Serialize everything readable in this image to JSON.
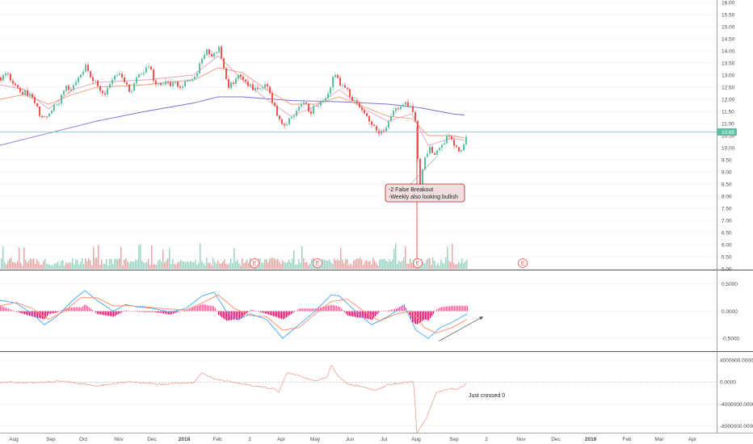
{
  "chart_data": {
    "type": "candlestick",
    "price_panel": {
      "y_ticks": [
        "16.00",
        "15.50",
        "15.00",
        "14.50",
        "14.00",
        "13.50",
        "13.00",
        "12.50",
        "12.00",
        "11.50",
        "11.00",
        "10.50",
        "10.00",
        "9.50",
        "9.00",
        "8.50",
        "8.00",
        "7.50",
        "7.00",
        "6.50",
        "6.00",
        "5.50",
        "5.00"
      ],
      "ylim": [
        5.0,
        16.0
      ],
      "last_price": "10.65",
      "grid": true,
      "price_path": [
        [
          0,
          12.9
        ],
        [
          8,
          13.1
        ],
        [
          16,
          12.6
        ],
        [
          24,
          12.4
        ],
        [
          32,
          12.2
        ],
        [
          40,
          12.0
        ],
        [
          48,
          11.4
        ],
        [
          56,
          11.3
        ],
        [
          64,
          11.7
        ],
        [
          72,
          11.9
        ],
        [
          80,
          12.6
        ],
        [
          88,
          12.4
        ],
        [
          96,
          12.8
        ],
        [
          104,
          13.4
        ],
        [
          112,
          12.8
        ],
        [
          120,
          12.6
        ],
        [
          128,
          12.2
        ],
        [
          136,
          12.6
        ],
        [
          144,
          13.1
        ],
        [
          152,
          12.7
        ],
        [
          160,
          12.3
        ],
        [
          168,
          12.9
        ],
        [
          176,
          13.1
        ],
        [
          184,
          13.3
        ],
        [
          192,
          12.6
        ],
        [
          200,
          12.7
        ],
        [
          208,
          12.6
        ],
        [
          216,
          12.6
        ],
        [
          224,
          12.5
        ],
        [
          232,
          12.8
        ],
        [
          240,
          12.9
        ],
        [
          248,
          13.6
        ],
        [
          256,
          14.0
        ],
        [
          264,
          13.8
        ],
        [
          270,
          14.2
        ],
        [
          276,
          13.3
        ],
        [
          282,
          12.5
        ],
        [
          288,
          12.7
        ],
        [
          296,
          13.1
        ],
        [
          304,
          12.7
        ],
        [
          312,
          12.4
        ],
        [
          320,
          12.3
        ],
        [
          328,
          12.6
        ],
        [
          336,
          11.9
        ],
        [
          344,
          11.2
        ],
        [
          352,
          10.9
        ],
        [
          360,
          11.3
        ],
        [
          368,
          11.6
        ],
        [
          376,
          11.8
        ],
        [
          384,
          11.5
        ],
        [
          392,
          11.8
        ],
        [
          400,
          11.9
        ],
        [
          408,
          12.4
        ],
        [
          412,
          13.2
        ],
        [
          420,
          12.6
        ],
        [
          428,
          12.4
        ],
        [
          436,
          12.0
        ],
        [
          444,
          11.6
        ],
        [
          452,
          11.3
        ],
        [
          460,
          11.0
        ],
        [
          468,
          10.6
        ],
        [
          476,
          10.7
        ],
        [
          484,
          11.4
        ],
        [
          492,
          11.6
        ],
        [
          500,
          11.9
        ],
        [
          508,
          11.6
        ],
        [
          514,
          10.9
        ],
        [
          518,
          8.2
        ],
        [
          524,
          9.6
        ],
        [
          530,
          10.0
        ],
        [
          536,
          9.6
        ],
        [
          542,
          10.1
        ],
        [
          548,
          10.2
        ],
        [
          554,
          10.5
        ],
        [
          560,
          10.2
        ],
        [
          566,
          9.8
        ],
        [
          572,
          10.1
        ],
        [
          578,
          10.65
        ]
      ],
      "series": [
        {
          "name": "",
          "color": "#7b6fd6",
          "points": [
            [
              0,
              10.1
            ],
            [
              60,
              10.6
            ],
            [
              120,
              11.1
            ],
            [
              180,
              11.5
            ],
            [
              240,
              11.85
            ],
            [
              270,
              12.1
            ],
            [
              300,
              12.1
            ],
            [
              360,
              11.95
            ],
            [
              420,
              11.9
            ],
            [
              480,
              11.8
            ],
            [
              520,
              11.65
            ],
            [
              560,
              11.4
            ],
            [
              575,
              11.35
            ]
          ]
        },
        {
          "name": "",
          "color": "#ef9a7a",
          "points": [
            [
              0,
              12.0
            ],
            [
              30,
              12.2
            ],
            [
              60,
              11.8
            ],
            [
              90,
              12.2
            ],
            [
              120,
              12.5
            ],
            [
              180,
              12.6
            ],
            [
              240,
              12.8
            ],
            [
              270,
              13.3
            ],
            [
              300,
              13.1
            ],
            [
              330,
              12.4
            ],
            [
              360,
              11.8
            ],
            [
              390,
              11.8
            ],
            [
              420,
              12.1
            ],
            [
              450,
              11.7
            ],
            [
              480,
              11.3
            ],
            [
              510,
              11.2
            ],
            [
              530,
              10.5
            ],
            [
              560,
              10.5
            ],
            [
              575,
              10.4
            ]
          ]
        },
        {
          "name": "",
          "color": "#e7a0b6",
          "points": [
            [
              0,
              12.6
            ],
            [
              30,
              12.4
            ],
            [
              60,
              11.6
            ],
            [
              90,
              12.4
            ],
            [
              120,
              12.7
            ],
            [
              180,
              12.8
            ],
            [
              240,
              13.0
            ],
            [
              270,
              13.8
            ],
            [
              300,
              12.8
            ],
            [
              330,
              12.0
            ],
            [
              360,
              11.3
            ],
            [
              390,
              11.7
            ],
            [
              420,
              12.4
            ],
            [
              450,
              11.6
            ],
            [
              480,
              11.1
            ],
            [
              510,
              11.4
            ],
            [
              530,
              10.1
            ],
            [
              560,
              10.4
            ],
            [
              575,
              10.3
            ]
          ]
        }
      ],
      "earnings_markers": [
        "E",
        "E",
        "E",
        "E"
      ]
    },
    "macd_panel": {
      "y_ticks": [
        "0.5000",
        "0.0000",
        "-0.5000"
      ],
      "ylim": [
        -0.72,
        0.72
      ],
      "macd": [
        [
          0,
          0.2
        ],
        [
          20,
          0.15
        ],
        [
          40,
          -0.05
        ],
        [
          55,
          -0.25
        ],
        [
          70,
          -0.1
        ],
        [
          90,
          0.2
        ],
        [
          105,
          0.38
        ],
        [
          120,
          0.2
        ],
        [
          140,
          0.0
        ],
        [
          155,
          0.12
        ],
        [
          170,
          0.08
        ],
        [
          190,
          0.05
        ],
        [
          210,
          -0.02
        ],
        [
          230,
          0.05
        ],
        [
          250,
          0.28
        ],
        [
          265,
          0.35
        ],
        [
          280,
          0.0
        ],
        [
          295,
          -0.15
        ],
        [
          310,
          -0.05
        ],
        [
          330,
          -0.15
        ],
        [
          350,
          -0.5
        ],
        [
          370,
          -0.25
        ],
        [
          390,
          0.0
        ],
        [
          410,
          0.3
        ],
        [
          420,
          0.28
        ],
        [
          440,
          0.0
        ],
        [
          460,
          -0.25
        ],
        [
          480,
          -0.1
        ],
        [
          500,
          0.1
        ],
        [
          515,
          -0.35
        ],
        [
          530,
          -0.5
        ],
        [
          545,
          -0.3
        ],
        [
          560,
          -0.2
        ],
        [
          578,
          -0.05
        ]
      ],
      "signal": [
        [
          0,
          0.1
        ],
        [
          20,
          0.16
        ],
        [
          40,
          0.05
        ],
        [
          60,
          -0.15
        ],
        [
          80,
          0.0
        ],
        [
          100,
          0.25
        ],
        [
          120,
          0.25
        ],
        [
          140,
          0.1
        ],
        [
          160,
          0.1
        ],
        [
          180,
          0.08
        ],
        [
          200,
          0.05
        ],
        [
          230,
          0.02
        ],
        [
          250,
          0.15
        ],
        [
          270,
          0.3
        ],
        [
          290,
          0.05
        ],
        [
          310,
          -0.08
        ],
        [
          330,
          -0.1
        ],
        [
          350,
          -0.35
        ],
        [
          370,
          -0.3
        ],
        [
          390,
          -0.05
        ],
        [
          410,
          0.18
        ],
        [
          430,
          0.22
        ],
        [
          450,
          0.0
        ],
        [
          470,
          -0.18
        ],
        [
          490,
          -0.05
        ],
        [
          510,
          0.0
        ],
        [
          525,
          -0.3
        ],
        [
          540,
          -0.4
        ],
        [
          560,
          -0.3
        ],
        [
          578,
          -0.15
        ]
      ],
      "trend_arrow": [
        [
          543,
          -0.55
        ],
        [
          598,
          -0.1
        ]
      ]
    },
    "oscillator_panel": {
      "y_ticks": [
        "4000000.0000",
        "0.0000",
        "-4000000.0000",
        "-8000000.0000"
      ],
      "ylim": [
        -9200000,
        5200000
      ],
      "values": [
        [
          0,
          0
        ],
        [
          40,
          -100000
        ],
        [
          80,
          200000
        ],
        [
          100,
          -300000
        ],
        [
          120,
          -700000
        ],
        [
          140,
          -300000
        ],
        [
          160,
          100000
        ],
        [
          180,
          -200000
        ],
        [
          200,
          -400000
        ],
        [
          220,
          -200000
        ],
        [
          240,
          -100000
        ],
        [
          250,
          1800000
        ],
        [
          265,
          600000
        ],
        [
          280,
          200000
        ],
        [
          300,
          -300000
        ],
        [
          320,
          -800000
        ],
        [
          340,
          -1200000
        ],
        [
          345,
          -1900000
        ],
        [
          355,
          1700000
        ],
        [
          370,
          1200000
        ],
        [
          390,
          200000
        ],
        [
          405,
          900000
        ],
        [
          410,
          3200000
        ],
        [
          418,
          1200000
        ],
        [
          430,
          -300000
        ],
        [
          450,
          -900000
        ],
        [
          465,
          -1500000
        ],
        [
          480,
          -500000
        ],
        [
          500,
          -100000
        ],
        [
          512,
          100000
        ],
        [
          516,
          -9200000
        ],
        [
          528,
          -6500000
        ],
        [
          540,
          -1800000
        ],
        [
          555,
          -1200000
        ],
        [
          565,
          -1300000
        ],
        [
          578,
          -300000
        ]
      ]
    },
    "x_axis": {
      "tick_labels": [
        "Aug",
        "Sep",
        "Oct",
        "Nov",
        "Dec",
        "2018",
        "Feb",
        "2",
        "Apr",
        "May",
        "Jun",
        "Jul",
        "Aug",
        "Sep",
        "2",
        "Nov",
        "Dec",
        "2019",
        "Feb",
        "Mar",
        "Apr"
      ]
    },
    "annotations": [
      {
        "lines": [
          "-2 False Breakout",
          "-Weekly also looking bullish"
        ]
      },
      {
        "text": "Just crossed 0"
      }
    ]
  },
  "colors": {
    "up": "#5bbfa3",
    "down": "#ef5350",
    "macd_line": "#42a5f5",
    "signal_line": "#ff8a65",
    "hist_pos": "#f06292",
    "hist_neg": "#c2185b",
    "oscillator": "#f2a08b",
    "price_line": "#70c6c6",
    "volume_up": "#9bd6c6",
    "volume_down": "#f6a3a8"
  }
}
